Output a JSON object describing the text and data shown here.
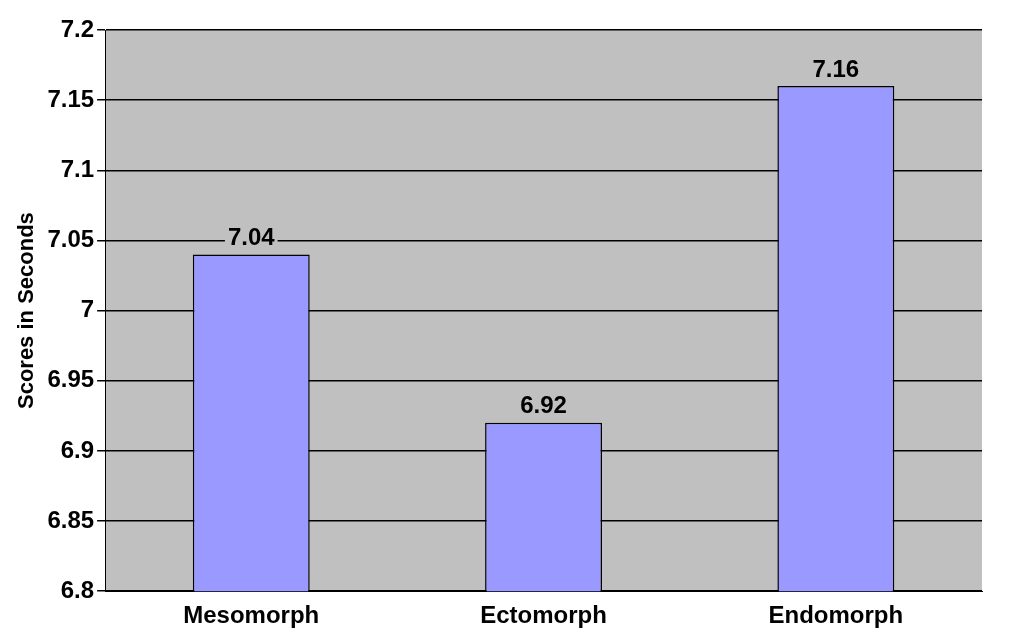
{
  "chart_data": {
    "type": "bar",
    "ylabel": "Scores in Seconds",
    "categories": [
      "Mesomorph",
      "Ectomorph",
      "Endomorph"
    ],
    "values": [
      7.04,
      6.92,
      7.16
    ],
    "color": "#9999ff",
    "ylim": [
      6.8,
      7.2
    ],
    "yticks": [
      6.8,
      6.85,
      6.9,
      6.95,
      7,
      7.05,
      7.1,
      7.15,
      7.2
    ],
    "grid": "y",
    "data_labels": true
  }
}
